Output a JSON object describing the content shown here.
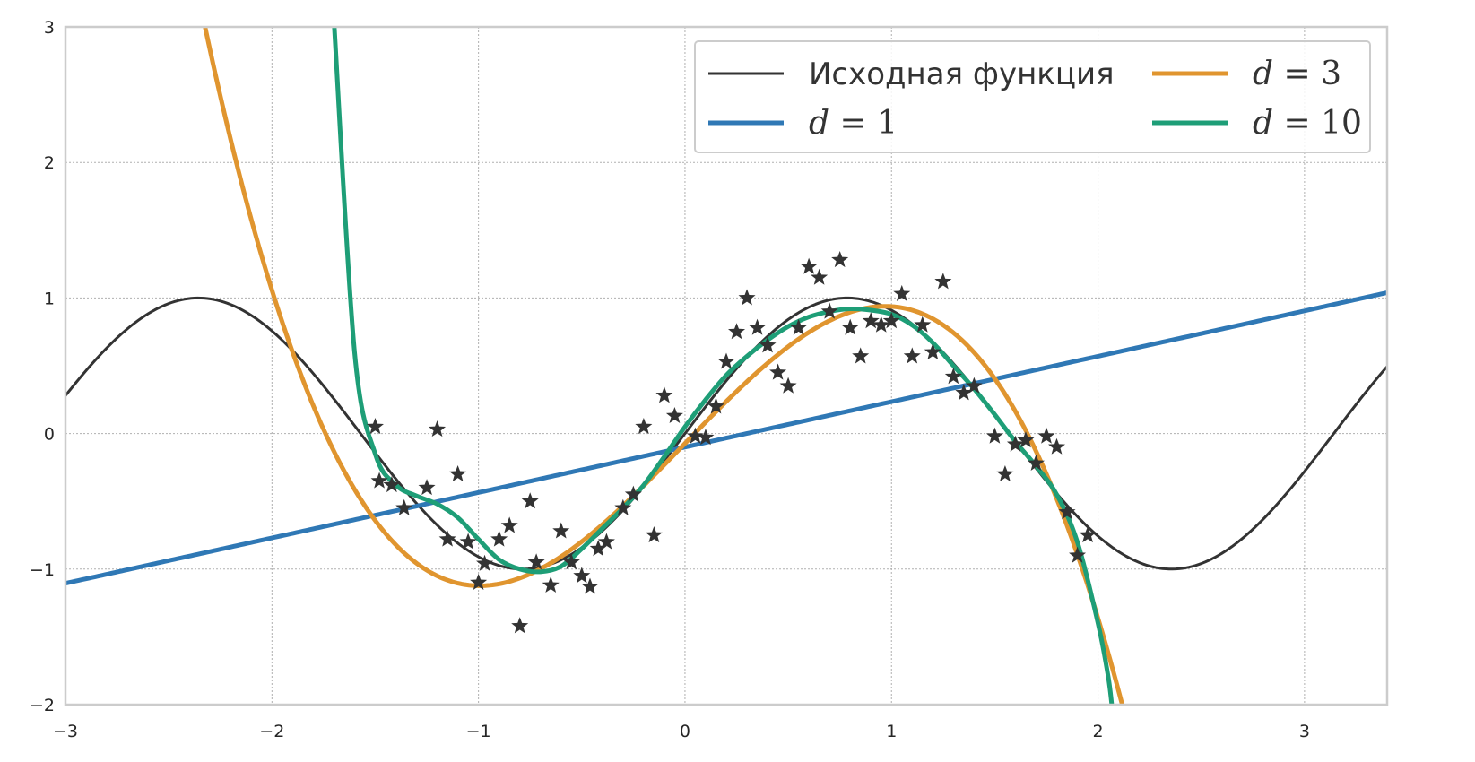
{
  "chart_data": {
    "type": "line",
    "title": "",
    "xlabel": "",
    "ylabel": "",
    "xlim": [
      -3,
      3.4
    ],
    "ylim": [
      -2,
      3
    ],
    "xticks": [
      -3,
      -2,
      -1,
      0,
      1,
      2,
      3
    ],
    "xtick_labels": [
      "−3",
      "−2",
      "−1",
      "0",
      "1",
      "2",
      "3"
    ],
    "yticks": [
      -2,
      -1,
      0,
      1,
      2,
      3
    ],
    "ytick_labels": [
      "−2",
      "−1",
      "0",
      "1",
      "2",
      "3"
    ],
    "grid": true,
    "legend_position": "top-right",
    "legend_columns": 2,
    "series": [
      {
        "name": "Исходная функция",
        "legend_prefix": "",
        "legend_value": "",
        "color": "#333333",
        "function": "sin(2x)",
        "x_range": [
          -3,
          3.4
        ]
      },
      {
        "name": "d = 1",
        "legend_prefix": "d",
        "legend_value": "1",
        "color": "#2f78b5",
        "coefficients": [
          -0.1,
          0.335
        ],
        "x_range": [
          -3,
          3.4
        ]
      },
      {
        "name": "d = 3",
        "legend_prefix": "d",
        "legend_value": "3",
        "color": "#e0952f",
        "coefficients": [
          -0.073,
          1.575,
          -0.02,
          -0.545
        ],
        "x_range": [
          -2.4,
          2.15
        ]
      },
      {
        "name": "d = 10",
        "legend_prefix": "d",
        "legend_value": "10",
        "color": "#1e9e77",
        "points": [
          [
            -1.7,
            3.05
          ],
          [
            -1.6,
            0.6
          ],
          [
            -1.5,
            -0.15
          ],
          [
            -1.4,
            -0.38
          ],
          [
            -1.3,
            -0.46
          ],
          [
            -1.2,
            -0.52
          ],
          [
            -1.1,
            -0.62
          ],
          [
            -1.0,
            -0.78
          ],
          [
            -0.9,
            -0.93
          ],
          [
            -0.8,
            -1.0
          ],
          [
            -0.7,
            -1.02
          ],
          [
            -0.6,
            -0.98
          ],
          [
            -0.5,
            -0.85
          ],
          [
            -0.4,
            -0.7
          ],
          [
            -0.3,
            -0.55
          ],
          [
            -0.2,
            -0.38
          ],
          [
            -0.1,
            -0.17
          ],
          [
            0.0,
            0.05
          ],
          [
            0.1,
            0.25
          ],
          [
            0.2,
            0.43
          ],
          [
            0.3,
            0.57
          ],
          [
            0.4,
            0.69
          ],
          [
            0.5,
            0.79
          ],
          [
            0.6,
            0.86
          ],
          [
            0.7,
            0.9
          ],
          [
            0.8,
            0.92
          ],
          [
            0.9,
            0.91
          ],
          [
            1.0,
            0.88
          ],
          [
            1.1,
            0.8
          ],
          [
            1.2,
            0.67
          ],
          [
            1.3,
            0.5
          ],
          [
            1.4,
            0.33
          ],
          [
            1.5,
            0.14
          ],
          [
            1.6,
            -0.06
          ],
          [
            1.7,
            -0.24
          ],
          [
            1.8,
            -0.45
          ],
          [
            1.9,
            -0.8
          ],
          [
            2.0,
            -1.4
          ],
          [
            2.05,
            -1.8
          ],
          [
            2.07,
            -2.05
          ]
        ]
      }
    ],
    "scatter": {
      "name": "",
      "marker": "star",
      "color": "#333333",
      "points": [
        [
          -1.5,
          0.05
        ],
        [
          -1.48,
          -0.35
        ],
        [
          -1.42,
          -0.38
        ],
        [
          -1.36,
          -0.55
        ],
        [
          -1.25,
          -0.4
        ],
        [
          -1.2,
          0.03
        ],
        [
          -1.15,
          -0.78
        ],
        [
          -1.1,
          -0.3
        ],
        [
          -1.05,
          -0.8
        ],
        [
          -1.0,
          -1.1
        ],
        [
          -0.97,
          -0.96
        ],
        [
          -0.9,
          -0.78
        ],
        [
          -0.85,
          -0.68
        ],
        [
          -0.8,
          -1.42
        ],
        [
          -0.75,
          -0.5
        ],
        [
          -0.72,
          -0.95
        ],
        [
          -0.65,
          -1.12
        ],
        [
          -0.6,
          -0.72
        ],
        [
          -0.55,
          -0.95
        ],
        [
          -0.5,
          -1.05
        ],
        [
          -0.46,
          -1.13
        ],
        [
          -0.42,
          -0.85
        ],
        [
          -0.38,
          -0.8
        ],
        [
          -0.3,
          -0.55
        ],
        [
          -0.25,
          -0.45
        ],
        [
          -0.2,
          0.05
        ],
        [
          -0.15,
          -0.75
        ],
        [
          -0.1,
          0.28
        ],
        [
          -0.05,
          0.13
        ],
        [
          0.05,
          -0.02
        ],
        [
          0.1,
          -0.03
        ],
        [
          0.15,
          0.2
        ],
        [
          0.2,
          0.53
        ],
        [
          0.25,
          0.75
        ],
        [
          0.3,
          1.0
        ],
        [
          0.35,
          0.78
        ],
        [
          0.4,
          0.65
        ],
        [
          0.45,
          0.45
        ],
        [
          0.5,
          0.35
        ],
        [
          0.55,
          0.78
        ],
        [
          0.6,
          1.23
        ],
        [
          0.65,
          1.15
        ],
        [
          0.7,
          0.9
        ],
        [
          0.75,
          1.28
        ],
        [
          0.8,
          0.78
        ],
        [
          0.85,
          0.57
        ],
        [
          0.9,
          0.83
        ],
        [
          0.95,
          0.8
        ],
        [
          1.0,
          0.83
        ],
        [
          1.05,
          1.03
        ],
        [
          1.1,
          0.57
        ],
        [
          1.15,
          0.8
        ],
        [
          1.2,
          0.6
        ],
        [
          1.25,
          1.12
        ],
        [
          1.3,
          0.42
        ],
        [
          1.35,
          0.3
        ],
        [
          1.4,
          0.35
        ],
        [
          1.5,
          -0.02
        ],
        [
          1.55,
          -0.3
        ],
        [
          1.6,
          -0.08
        ],
        [
          1.65,
          -0.05
        ],
        [
          1.7,
          -0.22
        ],
        [
          1.75,
          -0.02
        ],
        [
          1.8,
          -0.1
        ],
        [
          1.85,
          -0.58
        ],
        [
          1.9,
          -0.9
        ],
        [
          1.95,
          -0.75
        ]
      ]
    }
  }
}
